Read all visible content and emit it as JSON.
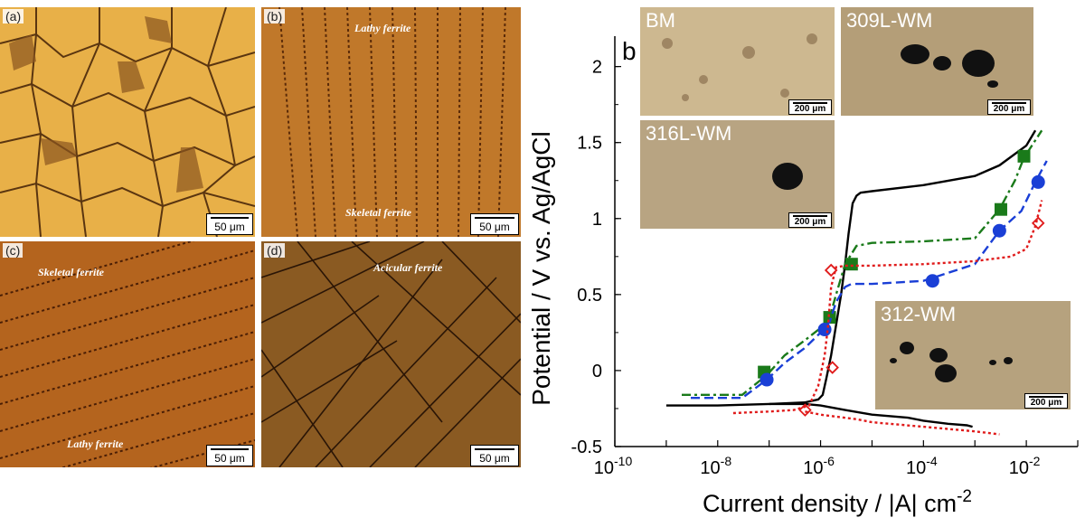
{
  "micrographs": [
    {
      "label": "(a)",
      "scale": "50 μm",
      "annotations": []
    },
    {
      "label": "(b)",
      "scale": "50 μm",
      "annotations": [
        "Lathy ferrite",
        "Skeletal ferrite"
      ]
    },
    {
      "label": "(c)",
      "scale": "50 μm",
      "annotations": [
        "Skeletal ferrite",
        "Lathy ferrite"
      ]
    },
    {
      "label": "(d)",
      "scale": "50 μm",
      "annotations": [
        "Acicular ferrite"
      ]
    }
  ],
  "insets": [
    {
      "label": "BM",
      "scale": "200 μm"
    },
    {
      "label": "309L-WM",
      "scale": "200 μm"
    },
    {
      "label": "316L-WM",
      "scale": "200 μm"
    },
    {
      "label": "312-WM",
      "scale": "200 μm"
    }
  ],
  "chart_data": {
    "type": "line",
    "panel_label": "b",
    "xlabel": "Current density / |A| cm",
    "xlabel_superscript": "-2",
    "ylabel": "Potential / V vs. Ag/AgCl",
    "xscale": "log",
    "xlim": [
      1e-10,
      0.1
    ],
    "ylim": [
      -0.5,
      2.2
    ],
    "x_ticks": [
      {
        "base": "10",
        "exp": "-10"
      },
      {
        "base": "10",
        "exp": "-8"
      },
      {
        "base": "10",
        "exp": "-6"
      },
      {
        "base": "10",
        "exp": "-4"
      },
      {
        "base": "10",
        "exp": "-2"
      }
    ],
    "y_ticks": [
      "-0.5",
      "0",
      "0.5",
      "1",
      "1.5",
      "2"
    ],
    "series": [
      {
        "color": "#000000",
        "dash": "solid",
        "marker": "none",
        "x": [
          1e-09,
          1e-08,
          1e-07,
          5e-07,
          9e-07,
          1.1e-06,
          1.3e-06,
          1.6e-06,
          2e-06,
          2.5e-06,
          3e-06,
          3.5e-06,
          4.2e-06,
          5e-06,
          6e-06,
          1e-05,
          0.0001,
          0.001,
          0.003,
          0.01,
          0.015
        ],
        "y": [
          -0.23,
          -0.23,
          -0.22,
          -0.21,
          -0.19,
          -0.16,
          -0.05,
          0.1,
          0.3,
          0.5,
          0.7,
          0.9,
          1.1,
          1.15,
          1.17,
          1.18,
          1.22,
          1.28,
          1.35,
          1.48,
          1.58
        ]
      },
      {
        "color": "#000000",
        "dash": "solid",
        "marker": "none",
        "x": [
          1e-07,
          5e-07,
          1e-06,
          3e-06,
          1e-05,
          5e-05,
          0.0001,
          0.0003,
          0.0007,
          0.0009
        ],
        "y": [
          -0.22,
          -0.22,
          -0.23,
          -0.26,
          -0.29,
          -0.31,
          -0.33,
          -0.35,
          -0.36,
          -0.37
        ]
      },
      {
        "color": "#1a7a1a",
        "dash": "dashdot",
        "marker": "square",
        "x": [
          2e-09,
          3e-08,
          9e-08,
          2e-07,
          5e-07,
          1e-06,
          1.5e-06,
          2e-06,
          3e-06,
          5e-06,
          1e-05,
          0.0001,
          0.001,
          0.003,
          0.006,
          0.009,
          0.02
        ],
        "y": [
          -0.16,
          -0.16,
          -0.03,
          0.1,
          0.2,
          0.28,
          0.35,
          0.5,
          0.7,
          0.82,
          0.84,
          0.85,
          0.87,
          1.06,
          1.25,
          1.4,
          1.58
        ],
        "markers_x": [
          8e-08,
          1.5e-06,
          4e-06,
          0.0032,
          0.009
        ],
        "markers_y": [
          -0.01,
          0.35,
          0.7,
          1.06,
          1.41
        ]
      },
      {
        "color": "#1a3fd6",
        "dash": "dash",
        "marker": "circle",
        "x": [
          3e-09,
          3e-08,
          9e-08,
          2e-07,
          5e-07,
          1e-06,
          1.5e-06,
          2e-06,
          3e-06,
          4e-06,
          1e-05,
          0.0001,
          0.001,
          0.003,
          0.008,
          0.015,
          0.025
        ],
        "y": [
          -0.18,
          -0.18,
          -0.06,
          0.05,
          0.15,
          0.25,
          0.32,
          0.45,
          0.55,
          0.57,
          0.57,
          0.59,
          0.7,
          0.92,
          1.05,
          1.24,
          1.38
        ],
        "markers_x": [
          9e-08,
          1.2e-06,
          0.00015,
          0.003,
          0.017
        ],
        "markers_y": [
          -0.06,
          0.27,
          0.59,
          0.92,
          1.24
        ]
      },
      {
        "color": "#e01b1b",
        "dash": "dot",
        "marker": "diamond-open",
        "x": [
          2e-08,
          1e-07,
          3e-07,
          6e-07,
          9e-07,
          1.2e-06,
          1.4e-06,
          1.6e-06,
          2e-06,
          3e-06,
          1e-05,
          0.0001,
          0.001,
          0.005,
          0.01,
          0.015,
          0.02
        ],
        "y": [
          -0.28,
          -0.27,
          -0.26,
          -0.23,
          -0.1,
          0.1,
          0.3,
          0.55,
          0.68,
          0.69,
          0.69,
          0.7,
          0.72,
          0.75,
          0.8,
          0.95,
          1.12
        ],
        "markers_x": [
          5e-07,
          1.7e-06,
          1.6e-06,
          0.017
        ],
        "markers_y": [
          -0.26,
          0.02,
          0.66,
          0.97
        ]
      },
      {
        "color": "#e01b1b",
        "dash": "dot",
        "marker": "none",
        "x": [
          5e-07,
          1e-06,
          5e-06,
          1e-05,
          0.0001,
          0.001,
          0.003
        ],
        "y": [
          -0.27,
          -0.29,
          -0.32,
          -0.34,
          -0.37,
          -0.4,
          -0.42
        ]
      }
    ]
  }
}
